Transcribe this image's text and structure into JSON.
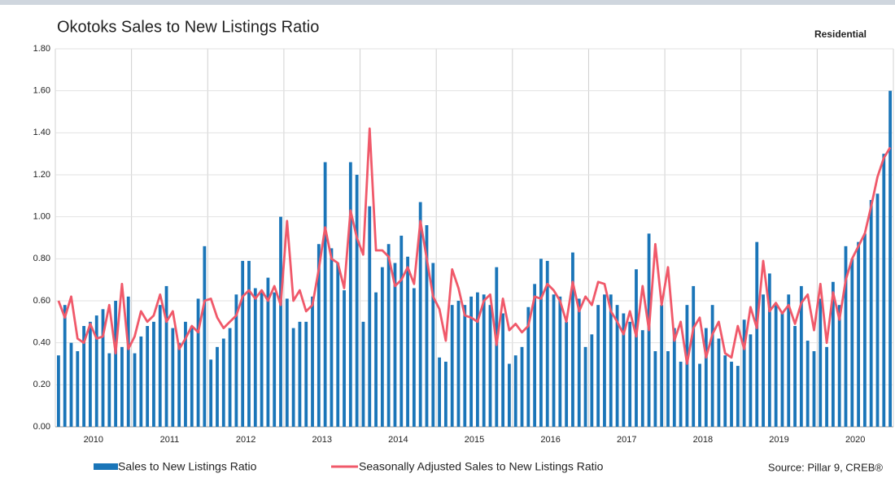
{
  "chart_data": {
    "type": "bar_line",
    "title": "Okotoks Sales to New Listings Ratio",
    "subtitle": "Residential",
    "source": "Source: Pillar 9, CREB®",
    "categories": [
      null,
      null,
      null,
      null,
      null,
      "2010",
      null,
      null,
      null,
      null,
      null,
      null,
      null,
      null,
      null,
      null,
      null,
      "2011",
      null,
      null,
      null,
      null,
      null,
      null,
      null,
      null,
      null,
      null,
      null,
      "2012",
      null,
      null,
      null,
      null,
      null,
      null,
      null,
      null,
      null,
      null,
      null,
      "2013",
      null,
      null,
      null,
      null,
      null,
      null,
      null,
      null,
      null,
      null,
      null,
      "2014",
      null,
      null,
      null,
      null,
      null,
      null,
      null,
      null,
      null,
      null,
      null,
      "2015",
      null,
      null,
      null,
      null,
      null,
      null,
      null,
      null,
      null,
      null,
      null,
      "2016",
      null,
      null,
      null,
      null,
      null,
      null,
      null,
      null,
      null,
      null,
      null,
      "2017",
      null,
      null,
      null,
      null,
      null,
      null,
      null,
      null,
      null,
      null,
      null,
      "2018",
      null,
      null,
      null,
      null,
      null,
      null,
      null,
      null,
      null,
      null,
      null,
      "2019",
      null,
      null,
      null,
      null,
      null,
      null,
      null,
      null,
      null,
      null,
      null,
      "2020",
      null,
      null,
      null,
      null,
      null,
      null
    ],
    "series": [
      {
        "name": "Sales to New Listings Ratio",
        "kind": "bar",
        "color": "#1a75b8",
        "values": [
          0.34,
          0.58,
          0.4,
          0.36,
          0.48,
          0.5,
          0.53,
          0.56,
          0.35,
          0.6,
          0.38,
          0.62,
          0.35,
          0.43,
          0.48,
          0.5,
          0.58,
          0.67,
          0.47,
          0.4,
          0.5,
          0.48,
          0.61,
          0.86,
          0.32,
          0.38,
          0.42,
          0.47,
          0.63,
          0.79,
          0.79,
          0.66,
          0.65,
          0.71,
          0.64,
          1.0,
          0.61,
          0.47,
          0.5,
          0.5,
          0.62,
          0.87,
          1.26,
          0.85,
          0.78,
          0.65,
          1.26,
          1.2,
          0.5,
          1.05,
          0.64,
          0.76,
          0.87,
          0.78,
          0.91,
          0.81,
          0.66,
          1.07,
          0.96,
          0.78,
          0.33,
          0.31,
          0.58,
          0.6,
          0.58,
          0.62,
          0.64,
          0.63,
          0.58,
          0.76,
          0.54,
          0.3,
          0.34,
          0.38,
          0.57,
          0.68,
          0.8,
          0.79,
          0.63,
          0.62,
          0.5,
          0.83,
          0.61,
          0.38,
          0.44,
          0.58,
          0.63,
          0.63,
          0.58,
          0.54,
          0.5,
          0.75,
          0.46,
          0.92,
          0.36,
          0.58,
          0.36,
          0.47,
          0.31,
          0.58,
          0.67,
          0.3,
          0.47,
          0.58,
          0.42,
          0.34,
          0.31,
          0.29,
          0.51,
          0.44,
          0.88,
          0.63,
          0.73,
          0.58,
          0.55,
          0.63,
          0.48,
          0.67,
          0.41,
          0.36,
          0.61,
          0.38,
          0.69,
          0.58,
          0.86,
          0.8,
          0.88,
          0.92,
          1.08,
          1.11,
          1.3,
          1.6
        ]
      },
      {
        "name": "Seasonally Adjusted Sales to New Listings Ratio",
        "kind": "line",
        "color": "#f0596a",
        "values": [
          0.6,
          0.52,
          0.62,
          0.42,
          0.4,
          0.49,
          0.42,
          0.43,
          0.58,
          0.35,
          0.68,
          0.37,
          0.43,
          0.55,
          0.5,
          0.53,
          0.63,
          0.5,
          0.55,
          0.37,
          0.42,
          0.48,
          0.45,
          0.6,
          0.61,
          0.52,
          0.47,
          0.5,
          0.53,
          0.62,
          0.65,
          0.61,
          0.65,
          0.6,
          0.67,
          0.58,
          0.98,
          0.6,
          0.65,
          0.55,
          0.58,
          0.75,
          0.95,
          0.8,
          0.78,
          0.66,
          1.03,
          0.9,
          0.82,
          1.42,
          0.84,
          0.84,
          0.81,
          0.67,
          0.7,
          0.76,
          0.68,
          0.98,
          0.8,
          0.62,
          0.56,
          0.41,
          0.75,
          0.66,
          0.53,
          0.52,
          0.5,
          0.6,
          0.63,
          0.39,
          0.61,
          0.46,
          0.49,
          0.45,
          0.48,
          0.62,
          0.61,
          0.68,
          0.65,
          0.6,
          0.5,
          0.69,
          0.55,
          0.62,
          0.58,
          0.69,
          0.68,
          0.55,
          0.5,
          0.44,
          0.55,
          0.43,
          0.67,
          0.46,
          0.87,
          0.58,
          0.76,
          0.41,
          0.5,
          0.3,
          0.47,
          0.52,
          0.33,
          0.44,
          0.5,
          0.35,
          0.33,
          0.48,
          0.37,
          0.57,
          0.47,
          0.79,
          0.55,
          0.59,
          0.54,
          0.58,
          0.49,
          0.59,
          0.63,
          0.46,
          0.68,
          0.4,
          0.64,
          0.51,
          0.7,
          0.8,
          0.86,
          0.92,
          1.05,
          1.19,
          1.28,
          1.33
        ]
      }
    ],
    "ylim": [
      0,
      1.8
    ],
    "yticks": [
      {
        "value": 0,
        "label": "0.00"
      },
      {
        "value": 0.2,
        "label": "0.20"
      },
      {
        "value": 0.4,
        "label": "0.40"
      },
      {
        "value": 0.6,
        "label": "0.60"
      },
      {
        "value": 0.8,
        "label": "0.80"
      },
      {
        "value": 1,
        "label": "1.00"
      },
      {
        "value": 1.2,
        "label": "1.20"
      },
      {
        "value": 1.4,
        "label": "1.40"
      },
      {
        "value": 1.6,
        "label": "1.60"
      },
      {
        "value": 1.8,
        "label": "1.80"
      }
    ],
    "grid": true
  }
}
